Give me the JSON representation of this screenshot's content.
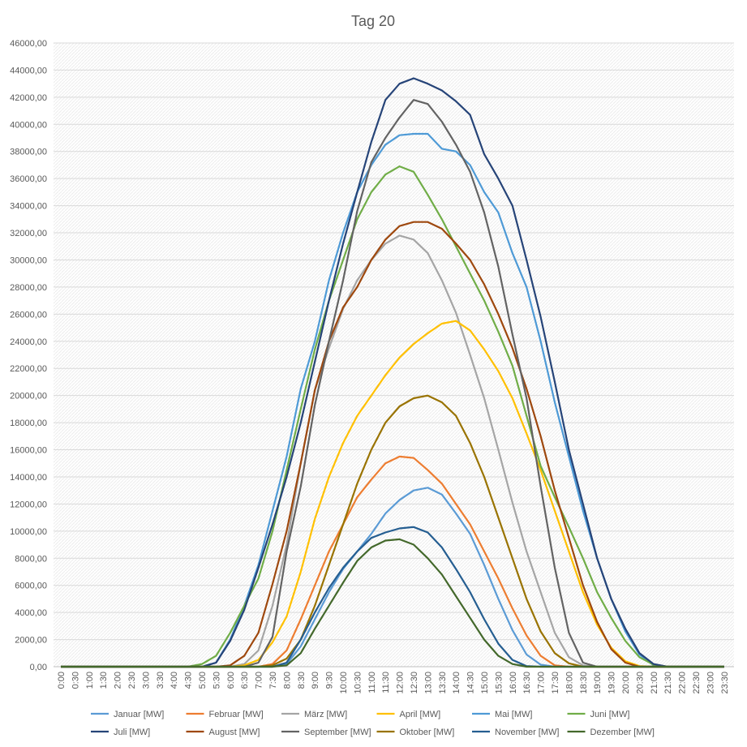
{
  "chart_data": {
    "type": "line",
    "title": "Tag 20",
    "categories": [
      "0:00",
      "0:30",
      "1:00",
      "1:30",
      "2:00",
      "2:30",
      "3:00",
      "3:30",
      "4:00",
      "4:30",
      "5:00",
      "5:30",
      "6:00",
      "6:30",
      "7:00",
      "7:30",
      "8:00",
      "8:30",
      "9:00",
      "9:30",
      "10:00",
      "10:30",
      "11:00",
      "11:30",
      "12:00",
      "12:30",
      "13:00",
      "13:30",
      "14:00",
      "14:30",
      "15:00",
      "15:30",
      "16:00",
      "16:30",
      "17:00",
      "17:30",
      "18:00",
      "18:30",
      "19:00",
      "19:30",
      "20:00",
      "20:30",
      "21:00",
      "21:30",
      "22:00",
      "22:30",
      "23:00",
      "23:30"
    ],
    "ylim": [
      0,
      46000
    ],
    "yticks": [
      {
        "value": 0,
        "label": "0,00"
      },
      {
        "value": 2000,
        "label": "2000,00"
      },
      {
        "value": 4000,
        "label": "4000,00"
      },
      {
        "value": 6000,
        "label": "6000,00"
      },
      {
        "value": 8000,
        "label": "8000,00"
      },
      {
        "value": 10000,
        "label": "10000,00"
      },
      {
        "value": 12000,
        "label": "12000,00"
      },
      {
        "value": 14000,
        "label": "14000,00"
      },
      {
        "value": 16000,
        "label": "16000,00"
      },
      {
        "value": 18000,
        "label": "18000,00"
      },
      {
        "value": 20000,
        "label": "20000,00"
      },
      {
        "value": 22000,
        "label": "22000,00"
      },
      {
        "value": 24000,
        "label": "24000,00"
      },
      {
        "value": 26000,
        "label": "26000,00"
      },
      {
        "value": 28000,
        "label": "28000,00"
      },
      {
        "value": 30000,
        "label": "30000,00"
      },
      {
        "value": 32000,
        "label": "32000,00"
      },
      {
        "value": 34000,
        "label": "34000,00"
      },
      {
        "value": 36000,
        "label": "36000,00"
      },
      {
        "value": 38000,
        "label": "38000,00"
      },
      {
        "value": 40000,
        "label": "40000,00"
      },
      {
        "value": 42000,
        "label": "42000,00"
      },
      {
        "value": 44000,
        "label": "44000,00"
      },
      {
        "value": 46000,
        "label": "46000,00"
      }
    ],
    "grid": true,
    "legend": "bottom",
    "series": [
      {
        "name": "Januar [MW]",
        "color": "#5b9bd5",
        "values": [
          0,
          0,
          0,
          0,
          0,
          0,
          0,
          0,
          0,
          0,
          0,
          0,
          0,
          0,
          0,
          0,
          200,
          1500,
          3500,
          5500,
          7200,
          8500,
          9800,
          11300,
          12300,
          13000,
          13200,
          12700,
          11300,
          9800,
          7500,
          5000,
          2700,
          900,
          150,
          0,
          0,
          0,
          0,
          0,
          0,
          0,
          0,
          0,
          0,
          0,
          0,
          0
        ]
      },
      {
        "name": "Februar [MW]",
        "color": "#ed7d31",
        "values": [
          0,
          0,
          0,
          0,
          0,
          0,
          0,
          0,
          0,
          0,
          0,
          0,
          0,
          0,
          0,
          200,
          1200,
          3500,
          6000,
          8500,
          10500,
          12500,
          13800,
          15000,
          15500,
          15400,
          14500,
          13500,
          12000,
          10500,
          8500,
          6500,
          4300,
          2300,
          800,
          100,
          0,
          0,
          0,
          0,
          0,
          0,
          0,
          0,
          0,
          0,
          0,
          0
        ]
      },
      {
        "name": "März [MW]",
        "color": "#a5a5a5",
        "values": [
          0,
          0,
          0,
          0,
          0,
          0,
          0,
          0,
          0,
          0,
          0,
          0,
          0,
          200,
          1200,
          4500,
          9000,
          15000,
          20400,
          23500,
          26400,
          28500,
          30000,
          31200,
          31800,
          31500,
          30500,
          28500,
          26100,
          23000,
          19800,
          16000,
          12100,
          8500,
          5500,
          2500,
          700,
          100,
          0,
          0,
          0,
          0,
          0,
          0,
          0,
          0,
          0,
          0
        ]
      },
      {
        "name": "April [MW]",
        "color": "#ffc000",
        "values": [
          0,
          0,
          0,
          0,
          0,
          0,
          0,
          0,
          0,
          0,
          0,
          0,
          0,
          100,
          500,
          1800,
          3700,
          7000,
          10900,
          14000,
          16500,
          18500,
          20000,
          21500,
          22800,
          23800,
          24600,
          25300,
          25500,
          24800,
          23400,
          21800,
          19800,
          17200,
          14500,
          11500,
          8500,
          5500,
          3100,
          1400,
          400,
          50,
          0,
          0,
          0,
          0,
          0,
          0
        ]
      },
      {
        "name": "Mai [MW]",
        "color": "#4e9ad6",
        "values": [
          0,
          0,
          0,
          0,
          0,
          0,
          0,
          0,
          0,
          0,
          0,
          300,
          2000,
          4500,
          7500,
          11500,
          15500,
          20500,
          24000,
          28500,
          32000,
          35000,
          37000,
          38500,
          39200,
          39300,
          39300,
          38200,
          38000,
          37000,
          35000,
          33500,
          30500,
          28000,
          24000,
          19500,
          15500,
          11500,
          8000,
          5000,
          2600,
          900,
          100,
          0,
          0,
          0,
          0,
          0
        ]
      },
      {
        "name": "Juni [MW]",
        "color": "#70ad47",
        "values": [
          0,
          0,
          0,
          0,
          0,
          0,
          0,
          0,
          0,
          0,
          200,
          800,
          2500,
          4500,
          6500,
          10000,
          14500,
          19000,
          23400,
          27000,
          30000,
          33000,
          35000,
          36300,
          36900,
          36500,
          34800,
          33000,
          31000,
          29000,
          27000,
          24700,
          22200,
          18500,
          14800,
          12500,
          10300,
          8000,
          5500,
          3600,
          1900,
          700,
          150,
          0,
          0,
          0,
          0,
          0
        ]
      },
      {
        "name": "Juli [MW]",
        "color": "#264478",
        "values": [
          0,
          0,
          0,
          0,
          0,
          0,
          0,
          0,
          0,
          0,
          0,
          300,
          1900,
          4200,
          7300,
          10500,
          14000,
          18000,
          22500,
          27000,
          31200,
          35000,
          38700,
          41800,
          43000,
          43400,
          43000,
          42500,
          41700,
          40700,
          37800,
          36000,
          34000,
          30000,
          25800,
          21000,
          16000,
          12000,
          8000,
          5000,
          2800,
          1000,
          200,
          0,
          0,
          0,
          0,
          0
        ]
      },
      {
        "name": "August [MW]",
        "color": "#9e480e",
        "values": [
          0,
          0,
          0,
          0,
          0,
          0,
          0,
          0,
          0,
          0,
          0,
          0,
          100,
          800,
          2500,
          6100,
          10000,
          15000,
          20400,
          24000,
          26500,
          28000,
          30000,
          31500,
          32500,
          32800,
          32800,
          32300,
          31200,
          30000,
          28200,
          26000,
          23500,
          20500,
          17000,
          13000,
          9500,
          6000,
          3300,
          1300,
          300,
          0,
          0,
          0,
          0,
          0,
          0,
          0
        ]
      },
      {
        "name": "September [MW]",
        "color": "#636363",
        "values": [
          0,
          0,
          0,
          0,
          0,
          0,
          0,
          0,
          0,
          0,
          0,
          0,
          0,
          0,
          300,
          2200,
          8500,
          13300,
          19300,
          24000,
          28500,
          33600,
          37200,
          39000,
          40500,
          41800,
          41500,
          40200,
          38500,
          36500,
          33500,
          29500,
          24500,
          19800,
          13300,
          7300,
          2500,
          300,
          0,
          0,
          0,
          0,
          0,
          0,
          0,
          0,
          0,
          0
        ]
      },
      {
        "name": "Oktober [MW]",
        "color": "#997300",
        "values": [
          0,
          0,
          0,
          0,
          0,
          0,
          0,
          0,
          0,
          0,
          0,
          0,
          0,
          0,
          0,
          100,
          600,
          2000,
          4500,
          7500,
          10500,
          13500,
          16000,
          18000,
          19200,
          19800,
          20000,
          19500,
          18500,
          16500,
          14000,
          11000,
          8000,
          5000,
          2600,
          1000,
          250,
          0,
          0,
          0,
          0,
          0,
          0,
          0,
          0,
          0,
          0,
          0
        ]
      },
      {
        "name": "November [MW]",
        "color": "#255e91",
        "values": [
          0,
          0,
          0,
          0,
          0,
          0,
          0,
          0,
          0,
          0,
          0,
          0,
          0,
          0,
          0,
          0,
          300,
          2000,
          4000,
          5800,
          7300,
          8500,
          9500,
          9900,
          10200,
          10300,
          9900,
          8800,
          7200,
          5500,
          3500,
          1700,
          500,
          50,
          0,
          0,
          0,
          0,
          0,
          0,
          0,
          0,
          0,
          0,
          0,
          0,
          0,
          0
        ]
      },
      {
        "name": "Dezember [MW]",
        "color": "#43682b",
        "values": [
          0,
          0,
          0,
          0,
          0,
          0,
          0,
          0,
          0,
          0,
          0,
          0,
          0,
          0,
          0,
          0,
          100,
          1000,
          2800,
          4500,
          6200,
          7800,
          8800,
          9300,
          9400,
          9000,
          8000,
          6800,
          5200,
          3600,
          2000,
          800,
          200,
          0,
          0,
          0,
          0,
          0,
          0,
          0,
          0,
          0,
          0,
          0,
          0,
          0,
          0,
          0
        ]
      }
    ]
  }
}
